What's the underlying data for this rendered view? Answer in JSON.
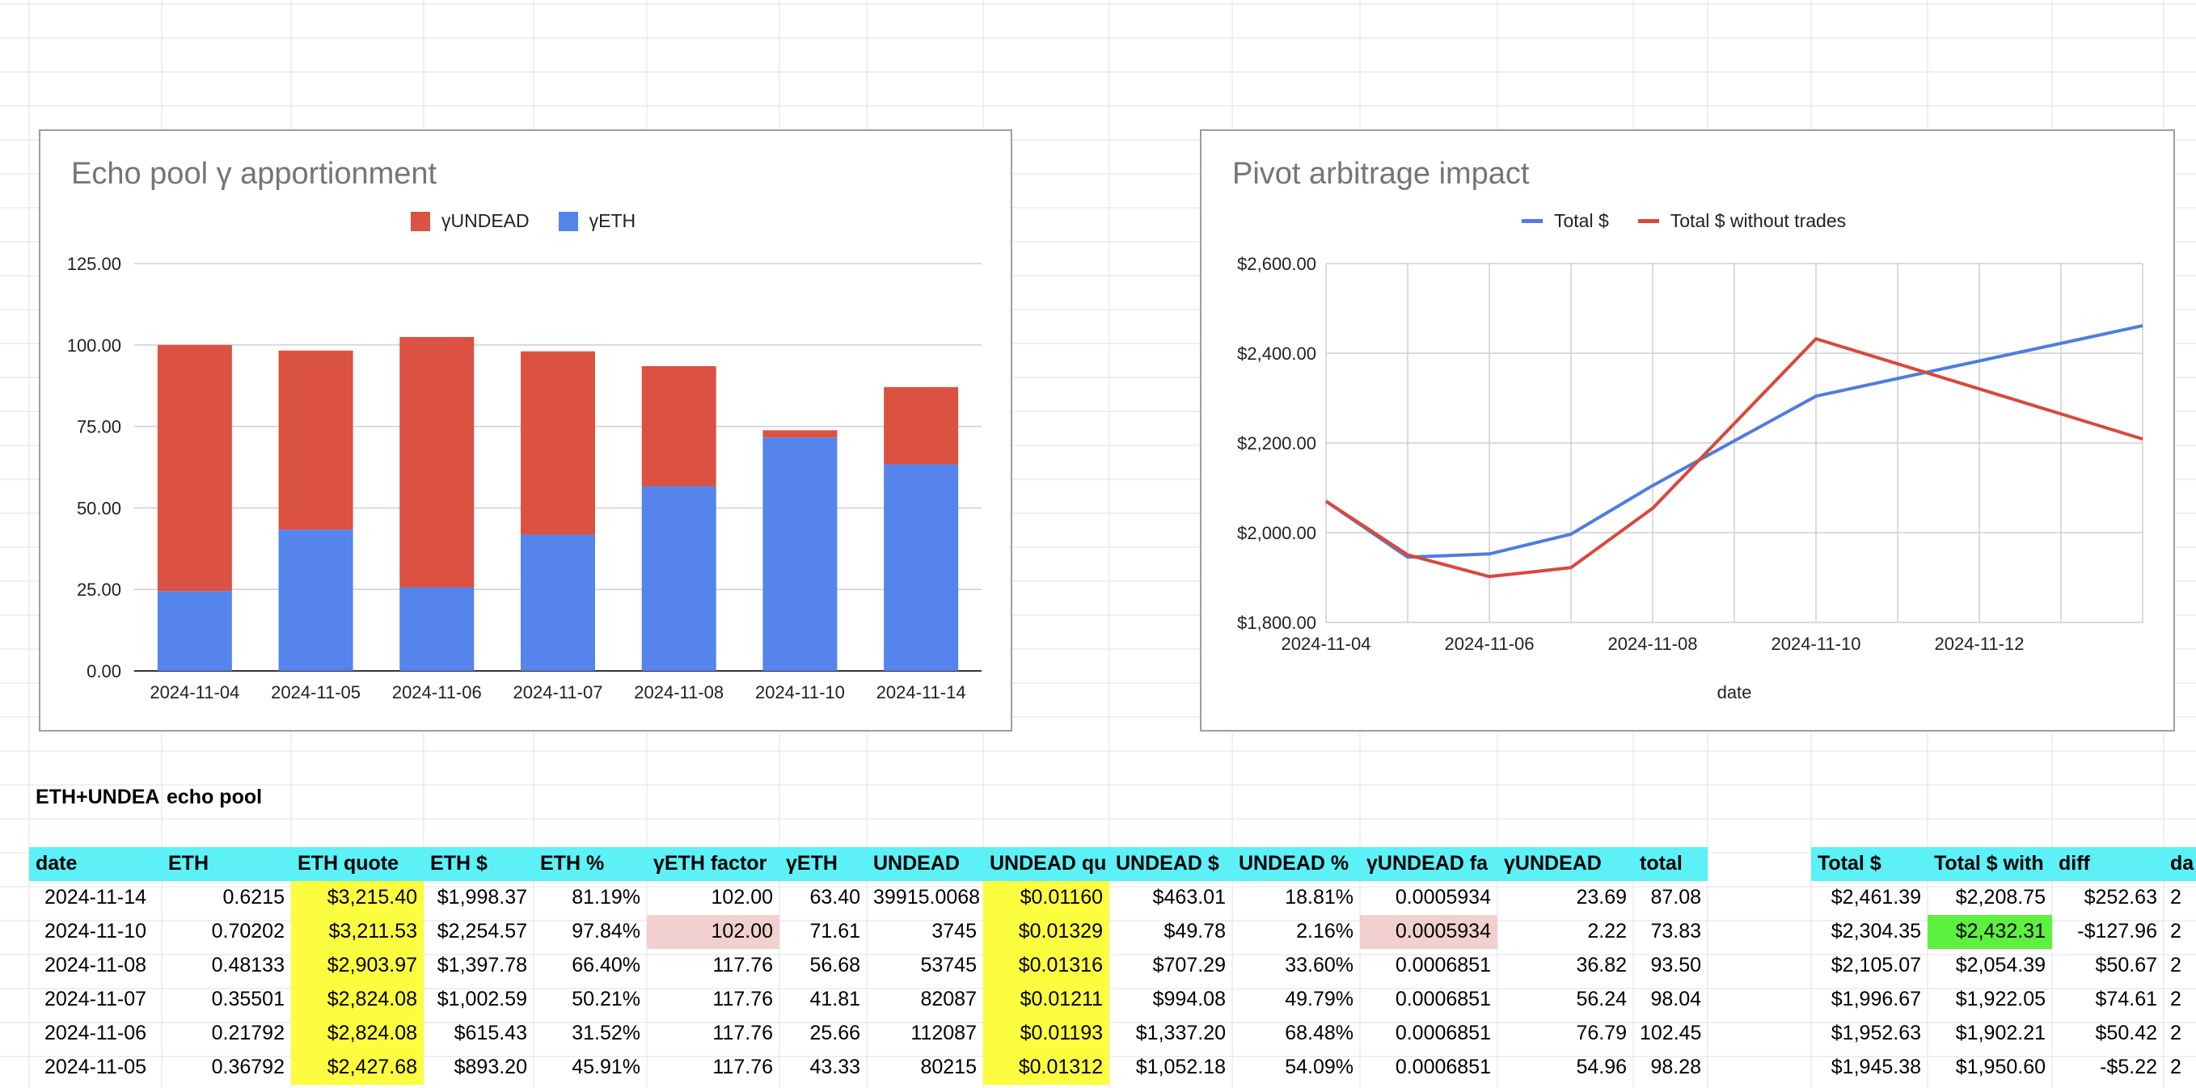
{
  "labels": {
    "section_a": "ETH+UNDEAD",
    "section_b": "echo pool"
  },
  "bar_chart": {
    "title": "Echo pool γ apportionment",
    "legend": [
      "γUNDEAD",
      "γETH"
    ],
    "colors": {
      "undead": "#db5242",
      "eth": "#5484ec"
    }
  },
  "line_chart": {
    "title": "Pivot arbitrage impact",
    "legend": [
      "Total $",
      "Total $ without trades"
    ],
    "xlabel": "date",
    "colors": {
      "total": "#4e7de0",
      "without": "#d9483b"
    }
  },
  "chart_data": [
    {
      "type": "bar",
      "stacked": true,
      "title": "Echo pool γ apportionment",
      "categories": [
        "2024-11-04",
        "2024-11-05",
        "2024-11-06",
        "2024-11-07",
        "2024-11-08",
        "2024-11-10",
        "2024-11-14"
      ],
      "series": [
        {
          "name": "γETH",
          "values": [
            24.5,
            43.33,
            25.66,
            41.81,
            56.68,
            71.61,
            63.4
          ]
        },
        {
          "name": "γUNDEAD",
          "values": [
            75.5,
            54.96,
            76.79,
            56.24,
            36.82,
            2.22,
            23.69
          ]
        }
      ],
      "yticks": [
        "0.00",
        "25.00",
        "50.00",
        "75.00",
        "100.00",
        "125.00"
      ],
      "ylim": [
        0,
        125
      ],
      "legend_position": "top",
      "grid": true
    },
    {
      "type": "line",
      "title": "Pivot arbitrage impact",
      "xlabel": "date",
      "x": [
        "2024-11-04",
        "2024-11-05",
        "2024-11-06",
        "2024-11-07",
        "2024-11-08",
        "2024-11-10",
        "2024-11-14"
      ],
      "series": [
        {
          "name": "Total $",
          "values": [
            2070,
            1945.38,
            1952.63,
            1996.67,
            2105.07,
            2304.35,
            2461.39
          ]
        },
        {
          "name": "Total $ without trades",
          "values": [
            2070,
            1950.6,
            1902.21,
            1922.05,
            2054.39,
            2432.31,
            2208.75
          ]
        }
      ],
      "xticks": [
        "2024-11-04",
        "2024-11-06",
        "2024-11-08",
        "2024-11-10",
        "2024-11-12"
      ],
      "yticks": [
        "$1,800.00",
        "$2,000.00",
        "$2,200.00",
        "$2,400.00",
        "$2,600.00"
      ],
      "ylim": [
        1800,
        2600
      ],
      "legend_position": "top",
      "grid": true
    }
  ],
  "table": {
    "headers": [
      "date",
      "ETH",
      "ETH quote",
      "ETH $",
      "ETH %",
      "γETH factor",
      "γETH",
      "UNDEAD",
      "UNDEAD qu",
      "UNDEAD $",
      "UNDEAD %",
      "γUNDEAD fa",
      "γUNDEAD",
      "total"
    ],
    "rows": [
      [
        "2024-11-14",
        "0.6215",
        "$3,215.40",
        "$1,998.37",
        "81.19%",
        "102.00",
        "63.40",
        "39915.0068",
        "$0.01160",
        "$463.01",
        "18.81%",
        "0.0005934",
        "23.69",
        "87.08"
      ],
      [
        "2024-11-10",
        "0.70202",
        "$3,211.53",
        "$2,254.57",
        "97.84%",
        "102.00",
        "71.61",
        "3745",
        "$0.01329",
        "$49.78",
        "2.16%",
        "0.0005934",
        "2.22",
        "73.83"
      ],
      [
        "2024-11-08",
        "0.48133",
        "$2,903.97",
        "$1,397.78",
        "66.40%",
        "117.76",
        "56.68",
        "53745",
        "$0.01316",
        "$707.29",
        "33.60%",
        "0.0006851",
        "36.82",
        "93.50"
      ],
      [
        "2024-11-07",
        "0.35501",
        "$2,824.08",
        "$1,002.59",
        "50.21%",
        "117.76",
        "41.81",
        "82087",
        "$0.01211",
        "$994.08",
        "49.79%",
        "0.0006851",
        "56.24",
        "98.04"
      ],
      [
        "2024-11-06",
        "0.21792",
        "$2,824.08",
        "$615.43",
        "31.52%",
        "117.76",
        "25.66",
        "112087",
        "$0.01193",
        "$1,337.20",
        "68.48%",
        "0.0006851",
        "76.79",
        "102.45"
      ],
      [
        "2024-11-05",
        "0.36792",
        "$2,427.68",
        "$893.20",
        "45.91%",
        "117.76",
        "43.33",
        "80215",
        "$0.01312",
        "$1,052.18",
        "54.09%",
        "0.0006851",
        "54.96",
        "98.28"
      ]
    ]
  },
  "table2": {
    "headers": [
      "Total $",
      "Total $ with",
      "diff",
      "da"
    ],
    "rows": [
      [
        "$2,461.39",
        "$2,208.75",
        "$252.63",
        "2"
      ],
      [
        "$2,304.35",
        "$2,432.31",
        "-$127.96",
        "2"
      ],
      [
        "$2,105.07",
        "$2,054.39",
        "$50.67",
        "2"
      ],
      [
        "$1,996.67",
        "$1,922.05",
        "$74.61",
        "2"
      ],
      [
        "$1,952.63",
        "$1,902.21",
        "$50.42",
        "2"
      ],
      [
        "$1,945.38",
        "$1,950.60",
        "-$5.22",
        "2"
      ]
    ]
  },
  "colors": {
    "header": "#5bf1f7",
    "highlight_yellow": "#fdfd3f",
    "highlight_pink": "#f2d0cf",
    "highlight_green": "#5cf03f",
    "gridline": "#e1e1e1"
  }
}
